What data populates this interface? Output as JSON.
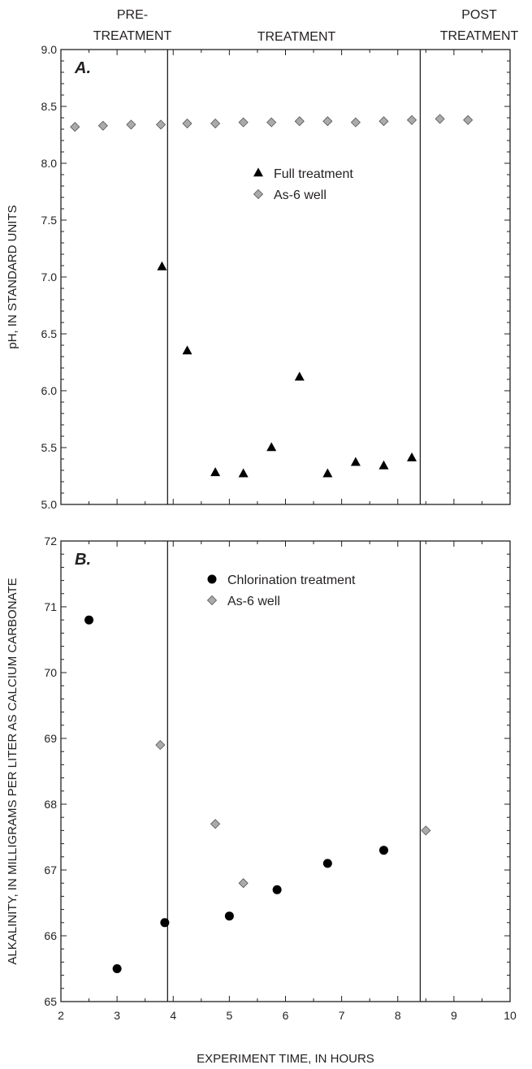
{
  "phase_labels": [
    {
      "id": "pre",
      "lines": [
        "PRE-",
        "TREATMENT"
      ]
    },
    {
      "id": "treatment",
      "lines": [
        "TREATMENT"
      ]
    },
    {
      "id": "post",
      "lines": [
        "POST",
        "TREATMENT"
      ]
    }
  ],
  "x_axis_title": "EXPERIMENT TIME, IN HOURS",
  "chart_data": [
    {
      "type": "scatter",
      "panel_label": "A.",
      "ylabel": "pH, IN STANDARD UNITS",
      "xlabel": "",
      "xlim": [
        2,
        10
      ],
      "ylim": [
        5.0,
        9.0
      ],
      "x_ticks": [],
      "y_ticks": [
        "5.0",
        "5.5",
        "6.0",
        "6.5",
        "7.0",
        "7.5",
        "8.0",
        "8.5",
        "9.0"
      ],
      "phase_boundaries": [
        3.9,
        8.4
      ],
      "grid": false,
      "legend_position": "upper-center",
      "series": [
        {
          "name": "Full treatment",
          "marker": "triangle",
          "color": "#000000",
          "points": [
            [
              3.8,
              7.09
            ],
            [
              4.25,
              6.35
            ],
            [
              4.75,
              5.28
            ],
            [
              5.25,
              5.27
            ],
            [
              5.75,
              5.5
            ],
            [
              6.25,
              6.12
            ],
            [
              6.75,
              5.27
            ],
            [
              7.25,
              5.37
            ],
            [
              7.75,
              5.34
            ],
            [
              8.25,
              5.41
            ]
          ]
        },
        {
          "name": "As-6 well",
          "marker": "diamond",
          "color": "#aaaaaa",
          "points": [
            [
              2.25,
              8.32
            ],
            [
              2.75,
              8.33
            ],
            [
              3.25,
              8.34
            ],
            [
              3.78,
              8.34
            ],
            [
              4.25,
              8.35
            ],
            [
              4.75,
              8.35
            ],
            [
              5.25,
              8.36
            ],
            [
              5.75,
              8.36
            ],
            [
              6.25,
              8.37
            ],
            [
              6.75,
              8.37
            ],
            [
              7.25,
              8.36
            ],
            [
              7.75,
              8.37
            ],
            [
              8.25,
              8.38
            ],
            [
              8.75,
              8.39
            ],
            [
              9.25,
              8.38
            ]
          ]
        }
      ]
    },
    {
      "type": "scatter",
      "panel_label": "B.",
      "ylabel": "ALKALINITY, IN MILLIGRAMS PER LITER AS CALCIUM CARBONATE",
      "xlabel": "EXPERIMENT TIME, IN HOURS",
      "xlim": [
        2,
        10
      ],
      "ylim": [
        65,
        72
      ],
      "x_ticks": [
        "2",
        "3",
        "4",
        "5",
        "6",
        "7",
        "8",
        "9",
        "10"
      ],
      "y_ticks": [
        "65",
        "66",
        "67",
        "68",
        "69",
        "70",
        "71",
        "72"
      ],
      "phase_boundaries": [
        3.9,
        8.4
      ],
      "grid": false,
      "legend_position": "upper-center",
      "series": [
        {
          "name": "Chlorination treatment",
          "marker": "circle",
          "color": "#000000",
          "points": [
            [
              2.5,
              70.8
            ],
            [
              3.0,
              65.5
            ],
            [
              3.85,
              66.2
            ],
            [
              5.0,
              66.3
            ],
            [
              5.85,
              66.7
            ],
            [
              6.75,
              67.1
            ],
            [
              7.75,
              67.3
            ]
          ]
        },
        {
          "name": "As-6 well",
          "marker": "diamond",
          "color": "#aaaaaa",
          "points": [
            [
              3.77,
              68.9
            ],
            [
              4.75,
              67.7
            ],
            [
              5.25,
              66.8
            ],
            [
              8.5,
              67.6
            ]
          ]
        }
      ]
    }
  ]
}
